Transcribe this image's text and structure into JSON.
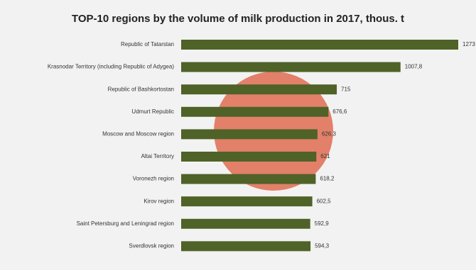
{
  "chart_data": {
    "type": "bar",
    "orientation": "horizontal",
    "title": "TOP-10 regions by the volume of milk production in 2017, thous. t",
    "categories": [
      "Republic of Tatarstan",
      "Krasnodar Territory (including Republic of Adygea)",
      "Republic of Bashkortostan",
      "Udmurt Republic",
      "Moscow and Moscow region",
      "Altai Territory",
      "Voronezh region",
      "Kirov region",
      "Saint Petersburg and Leningrad region",
      "Sverdlovsk region"
    ],
    "values": [
      1273,
      1007.8,
      715,
      676.6,
      626.3,
      621,
      618.2,
      602.5,
      592.9,
      594.3
    ],
    "value_labels": [
      "1273",
      "1007,8",
      "715",
      "676,6",
      "626,3",
      "621",
      "618,2",
      "602,5",
      "592,9",
      "594,3"
    ],
    "color": "#4f6228"
  }
}
